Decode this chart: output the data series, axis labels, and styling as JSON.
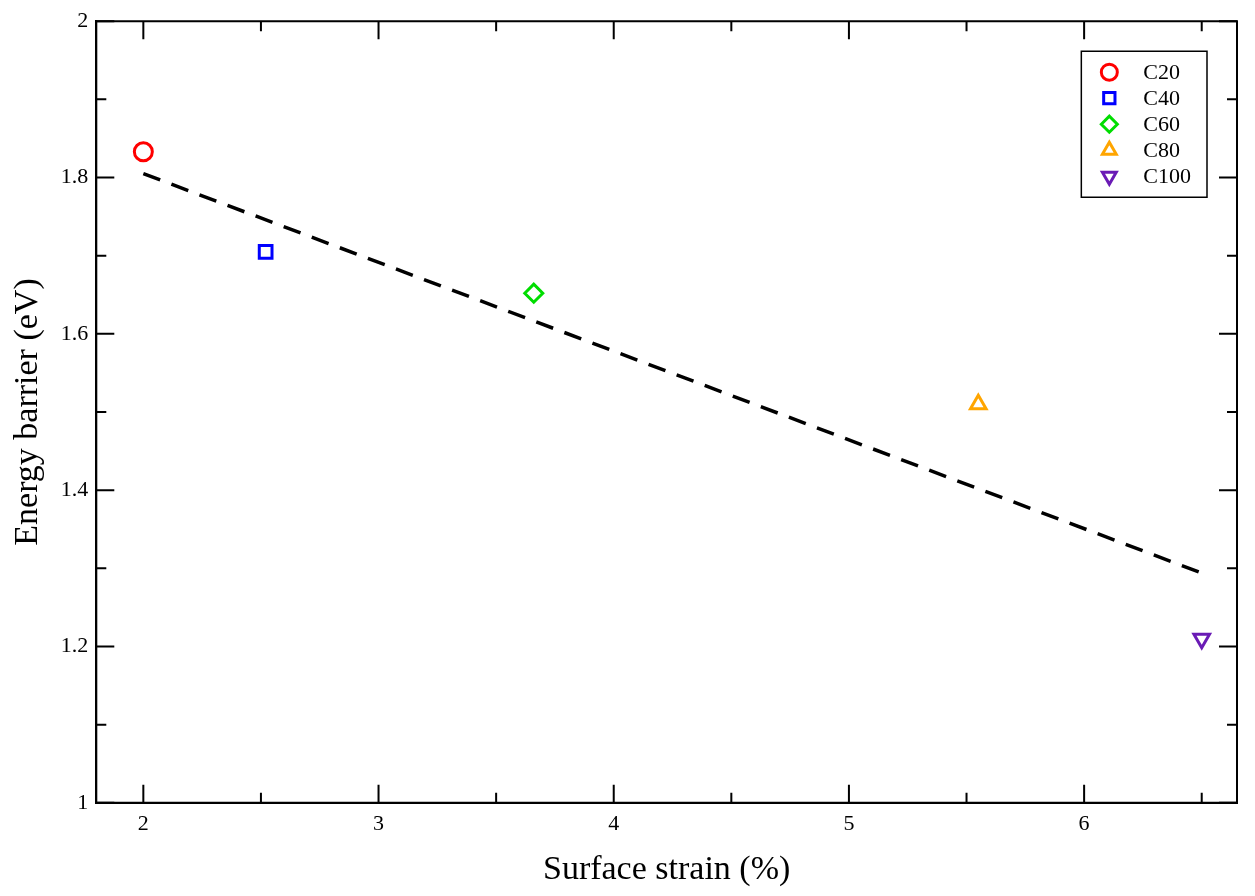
{
  "chart_data": {
    "type": "scatter",
    "xlabel": "Surface strain (%)",
    "ylabel": "Energy barrier (eV)",
    "xlim": [
      1.8,
      6.65
    ],
    "ylim": [
      1,
      2
    ],
    "xticks": [
      2,
      {
        "value": 2.5,
        "label": null
      },
      3,
      {
        "value": 3.5,
        "label": null
      },
      4,
      {
        "value": 4.5,
        "label": null
      },
      5,
      {
        "value": 5.5,
        "label": null
      },
      6,
      {
        "value": 6.5,
        "label": null
      }
    ],
    "yticks": [
      1,
      {
        "value": 1.1,
        "label": null
      },
      1.2,
      {
        "value": 1.3,
        "label": null
      },
      1.4,
      {
        "value": 1.5,
        "label": null
      },
      1.6,
      {
        "value": 1.7,
        "label": null
      },
      1.8,
      {
        "value": 1.9,
        "label": null
      },
      2
    ],
    "grid": false,
    "legend": "top right",
    "series": [
      {
        "name": "C20",
        "color": "#ff0000",
        "marker": "circle",
        "x": [
          2.0
        ],
        "values": [
          1.833
        ]
      },
      {
        "name": "C40",
        "color": "#0000ff",
        "marker": "square",
        "x": [
          2.52
        ],
        "values": [
          1.705
        ]
      },
      {
        "name": "C60",
        "color": "#00dd00",
        "marker": "diamond",
        "x": [
          3.66
        ],
        "values": [
          1.652
        ]
      },
      {
        "name": "C80",
        "color": "#ffa500",
        "marker": "triangle",
        "x": [
          5.55
        ],
        "values": [
          1.51
        ]
      },
      {
        "name": "C100",
        "color": "#6a1bb5",
        "marker": "triangle-down",
        "x": [
          6.5
        ],
        "values": [
          1.21
        ]
      },
      {
        "type": "line",
        "color": "#000000",
        "marker": "none",
        "line_style": "dashed",
        "x": [
          2.0,
          6.5
        ],
        "values": [
          1.805,
          1.294
        ]
      }
    ]
  }
}
